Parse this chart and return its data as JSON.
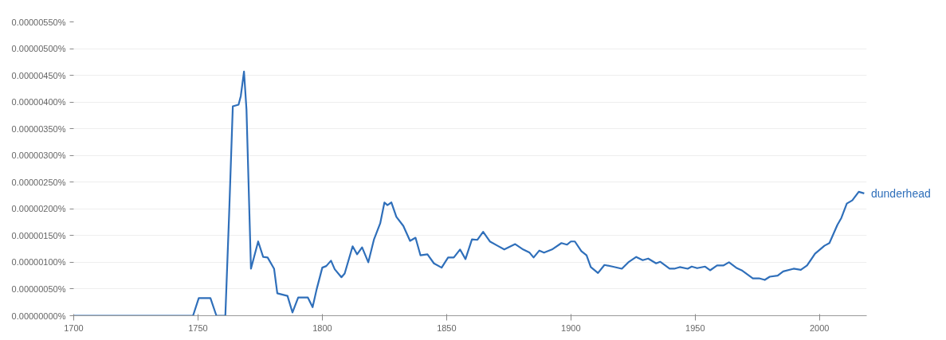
{
  "chart_data": {
    "type": "line",
    "x": [
      1700,
      1744,
      1748,
      1750.3,
      1755,
      1757.4,
      1761,
      1762.5,
      1764,
      1766.3,
      1767.2,
      1768.5,
      1769.5,
      1771.3,
      1774.2,
      1776.2,
      1778,
      1780.6,
      1781.9,
      1786,
      1788,
      1790.3,
      1794.2,
      1796.1,
      1797.7,
      1800,
      1801.6,
      1803.5,
      1805,
      1807.7,
      1809,
      1812.2,
      1814,
      1816,
      1818.5,
      1820.8,
      1823.3,
      1825,
      1826.2,
      1827.8,
      1829.8,
      1832.6,
      1835.3,
      1837.5,
      1839.5,
      1842.3,
      1844.9,
      1848,
      1850.6,
      1852.9,
      1855.4,
      1857.6,
      1860.2,
      1862.4,
      1864.7,
      1867.4,
      1870.5,
      1873.2,
      1877.6,
      1880.8,
      1883.4,
      1885,
      1887.3,
      1889.2,
      1892.4,
      1896.2,
      1898.4,
      1900,
      1901.6,
      1904.2,
      1906.3,
      1908,
      1910.9,
      1913.5,
      1916.7,
      1920.5,
      1923.1,
      1926.3,
      1928.9,
      1931.1,
      1934.3,
      1935.9,
      1939.7,
      1941.6,
      1943.8,
      1947,
      1948.6,
      1950.8,
      1954,
      1956,
      1958.8,
      1961.3,
      1963.6,
      1966.8,
      1968.7,
      1973.2,
      1975.7,
      1978,
      1980,
      1983.2,
      1985.4,
      1989.6,
      1992.5,
      1995,
      1998.2,
      2002,
      2004,
      2007.2,
      2008.8,
      2011,
      2013.2,
      2015.8,
      2018
    ],
    "series": [
      {
        "name": "dunderhead",
        "color": "#2f6fba",
        "values": [
          0,
          0,
          0,
          3.3e-07,
          3.3e-07,
          0,
          0,
          1.88e-06,
          3.92e-06,
          3.95e-06,
          4.11e-06,
          4.57e-06,
          3.86e-06,
          8.8e-07,
          1.39e-06,
          1.1e-06,
          1.09e-06,
          8.8e-07,
          4.2e-07,
          3.7e-07,
          6e-08,
          3.4e-07,
          3.4e-07,
          1.6e-07,
          4.9e-07,
          9e-07,
          9.3e-07,
          1.03e-06,
          8.7e-07,
          7.2e-07,
          7.9e-07,
          1.3e-06,
          1.15e-06,
          1.28e-06,
          1e-06,
          1.43e-06,
          1.73e-06,
          2.12e-06,
          2.07e-06,
          2.12e-06,
          1.85e-06,
          1.68e-06,
          1.4e-06,
          1.46e-06,
          1.13e-06,
          1.15e-06,
          9.8e-07,
          9e-07,
          1.09e-06,
          1.09e-06,
          1.24e-06,
          1.06e-06,
          1.43e-06,
          1.42e-06,
          1.57e-06,
          1.39e-06,
          1.31e-06,
          1.24e-06,
          1.34e-06,
          1.24e-06,
          1.18e-06,
          1.09e-06,
          1.22e-06,
          1.18e-06,
          1.24e-06,
          1.36e-06,
          1.33e-06,
          1.39e-06,
          1.39e-06,
          1.21e-06,
          1.13e-06,
          9.1e-07,
          8e-07,
          9.5e-07,
          9.2e-07,
          8.8e-07,
          1e-06,
          1.1e-06,
          1.04e-06,
          1.07e-06,
          9.8e-07,
          1.01e-06,
          8.8e-07,
          8.8e-07,
          9.1e-07,
          8.8e-07,
          9.2e-07,
          8.9e-07,
          9.2e-07,
          8.5e-07,
          9.4e-07,
          9.4e-07,
          1e-06,
          8.9e-07,
          8.5e-07,
          7e-07,
          7e-07,
          6.7e-07,
          7.3e-07,
          7.5e-07,
          8.3e-07,
          8.8e-07,
          8.6e-07,
          9.4e-07,
          1.16e-06,
          1.31e-06,
          1.36e-06,
          1.7e-06,
          1.83e-06,
          2.1e-06,
          2.16e-06,
          2.32e-06,
          2.29e-06
        ]
      }
    ],
    "xlim": [
      1700,
      2019
    ],
    "xticks": [
      1700,
      1750,
      1800,
      1850,
      1900,
      1950,
      2000
    ],
    "ylim": [
      0,
      5.5e-06
    ],
    "yticks": [
      {
        "value": 0,
        "label": "0.00000000%"
      },
      {
        "value": 5e-07,
        "label": "0.00000050%"
      },
      {
        "value": 1e-06,
        "label": "0.00000100%"
      },
      {
        "value": 1.5e-06,
        "label": "0.00000150%"
      },
      {
        "value": 2e-06,
        "label": "0.00000200%"
      },
      {
        "value": 2.5e-06,
        "label": "0.00000250%"
      },
      {
        "value": 3e-06,
        "label": "0.00000300%"
      },
      {
        "value": 3.5e-06,
        "label": "0.00000350%"
      },
      {
        "value": 4e-06,
        "label": "0.00000400%"
      },
      {
        "value": 4.5e-06,
        "label": "0.00000450%"
      },
      {
        "value": 5e-06,
        "label": "0.00000500%"
      },
      {
        "value": 5.5e-06,
        "label": "0.00000550%"
      }
    ],
    "grid": "y",
    "line_style": "solid"
  }
}
